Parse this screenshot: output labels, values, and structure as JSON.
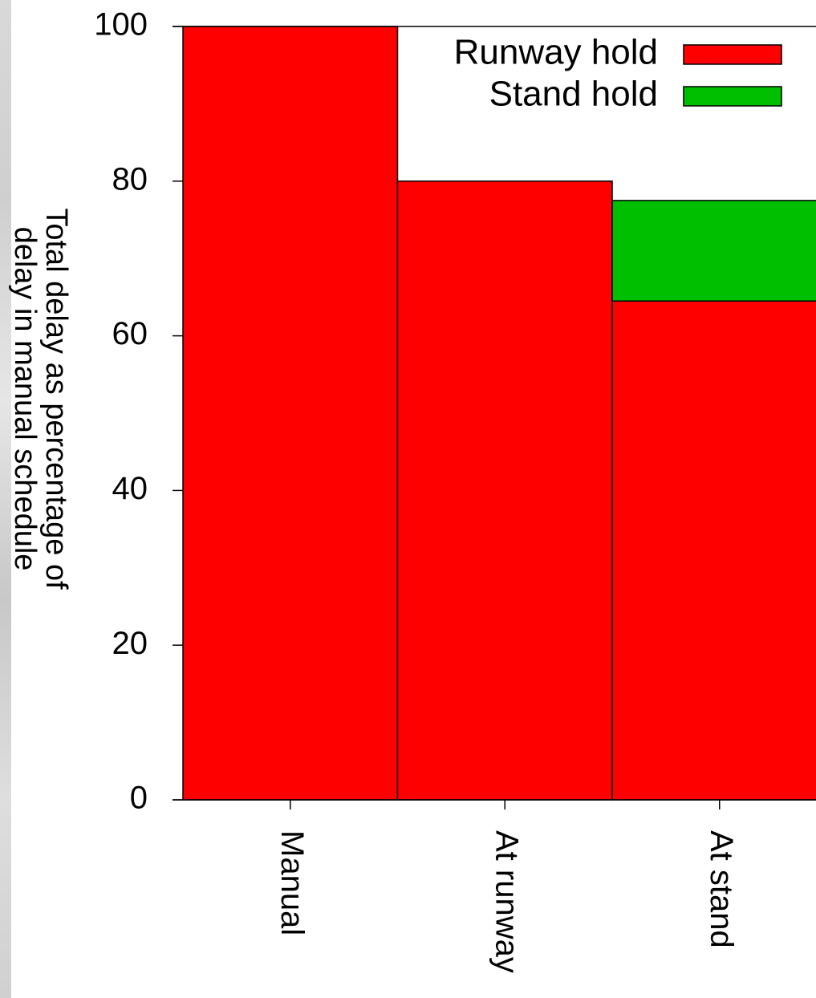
{
  "chart_data": {
    "type": "bar",
    "stacked": true,
    "categories": [
      "Manual",
      "At runway",
      "At stand"
    ],
    "series": [
      {
        "name": "Runway hold",
        "color": "#ff0000",
        "values": [
          100,
          80,
          64.5
        ]
      },
      {
        "name": "Stand hold",
        "color": "#00bf00",
        "values": [
          0,
          0,
          13
        ]
      }
    ],
    "xlabel": "",
    "ylabel": "Total delay as percentage of delay in manual schedule",
    "ylabel_lines": [
      "Total delay as percentage of",
      "delay in manual schedule"
    ],
    "ylim": [
      0,
      100
    ],
    "yticks": [
      "0",
      "20",
      "40",
      "60",
      "80",
      "100"
    ],
    "grid": false,
    "legend": "top-right",
    "category_labels_rotated": true
  }
}
